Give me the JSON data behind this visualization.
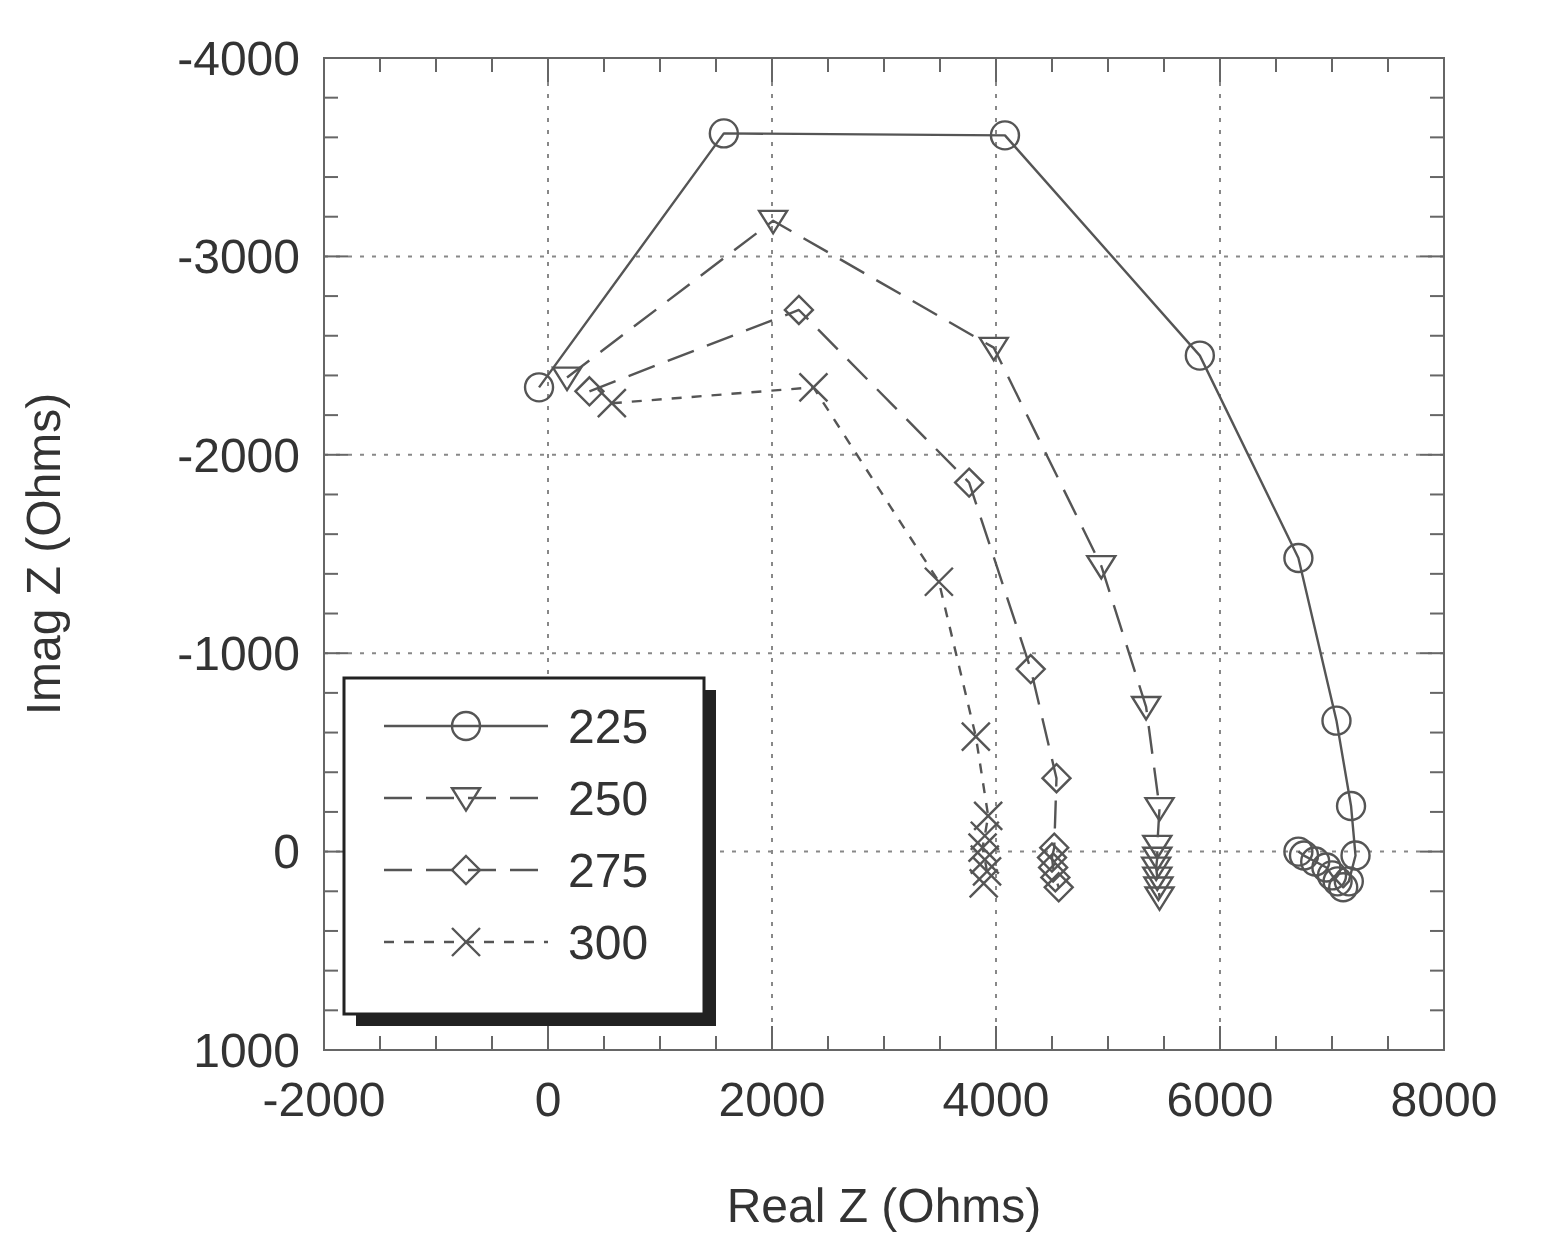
{
  "chart_data": {
    "type": "line",
    "xlabel": "Real Z (Ohms)",
    "ylabel": "Imag Z (Ohms)",
    "xlim": [
      -2000,
      8000
    ],
    "xticks": [
      -2000,
      {
        "value": -1500,
        "label": null
      },
      {
        "value": -1000,
        "label": null
      },
      {
        "value": -500,
        "label": null
      },
      0,
      {
        "value": 500,
        "label": null
      },
      {
        "value": 1000,
        "label": null
      },
      {
        "value": 1500,
        "label": null
      },
      2000,
      {
        "value": 2500,
        "label": null
      },
      {
        "value": 3000,
        "label": null
      },
      {
        "value": 3500,
        "label": null
      },
      4000,
      {
        "value": 4500,
        "label": null
      },
      {
        "value": 5000,
        "label": null
      },
      {
        "value": 5500,
        "label": null
      },
      6000,
      {
        "value": 6500,
        "label": null
      },
      {
        "value": 7000,
        "label": null
      },
      {
        "value": 7500,
        "label": null
      },
      8000
    ],
    "ylim": [
      1000,
      -4000
    ],
    "yticks": [
      -4000,
      {
        "value": -3800,
        "label": null
      },
      {
        "value": -3600,
        "label": null
      },
      {
        "value": -3400,
        "label": null
      },
      {
        "value": -3200,
        "label": null
      },
      -3000,
      {
        "value": -2800,
        "label": null
      },
      {
        "value": -2600,
        "label": null
      },
      {
        "value": -2400,
        "label": null
      },
      {
        "value": -2200,
        "label": null
      },
      -2000,
      {
        "value": -1800,
        "label": null
      },
      {
        "value": -1600,
        "label": null
      },
      {
        "value": -1400,
        "label": null
      },
      {
        "value": -1200,
        "label": null
      },
      -1000,
      {
        "value": -800,
        "label": null
      },
      {
        "value": -600,
        "label": null
      },
      {
        "value": -400,
        "label": null
      },
      {
        "value": -200,
        "label": null
      },
      0,
      {
        "value": 200,
        "label": null
      },
      {
        "value": 400,
        "label": null
      },
      {
        "value": 600,
        "label": null
      },
      {
        "value": 800,
        "label": null
      },
      1000
    ],
    "grid": true,
    "legend": "bottom left",
    "series": [
      {
        "name": "225",
        "color": "#555555",
        "marker": "circle",
        "line_style": "solid",
        "x": [
          -80,
          1570,
          4080,
          5820,
          6700,
          7040,
          7170,
          7210,
          7150,
          7100,
          7050,
          7000,
          6950,
          6850,
          6750,
          6700
        ],
        "values": [
          -2340,
          -3620,
          -3610,
          -2500,
          -1480,
          -660,
          -230,
          20,
          150,
          180,
          150,
          120,
          80,
          50,
          20,
          0
        ]
      },
      {
        "name": "250",
        "color": "#555555",
        "marker": "triangle",
        "line_style": "dashed",
        "x": [
          170,
          2010,
          3980,
          4940,
          5340,
          5460,
          5440,
          5440,
          5430,
          5440,
          5450,
          5460
        ],
        "values": [
          -2390,
          -3180,
          -2540,
          -1440,
          -730,
          -220,
          -30,
          30,
          80,
          130,
          180,
          230
        ]
      },
      {
        "name": "275",
        "color": "#555555",
        "marker": "diamond",
        "line_style": "dashed",
        "x": [
          370,
          2240,
          3760,
          4310,
          4540,
          4520,
          4500,
          4510,
          4530,
          4560
        ],
        "values": [
          -2320,
          -2730,
          -1860,
          -920,
          -370,
          -20,
          30,
          80,
          130,
          180
        ]
      },
      {
        "name": "300",
        "color": "#555555",
        "marker": "cross",
        "line_style": "dotted",
        "x": [
          570,
          2370,
          3490,
          3820,
          3930,
          3900,
          3880,
          3900,
          3920,
          3890
        ],
        "values": [
          -2260,
          -2340,
          -1360,
          -580,
          -180,
          -80,
          -20,
          40,
          100,
          160
        ]
      }
    ]
  }
}
